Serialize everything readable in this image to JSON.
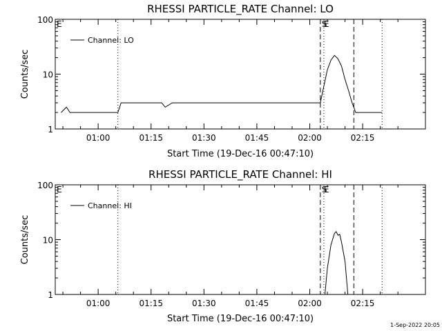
{
  "footer": {
    "timestamp": "1-Sep-2022 20:05"
  },
  "chart_data": [
    {
      "type": "line",
      "title": "RHESSI PARTICLE_RATE Channel: LO",
      "xlabel": "Start Time (19-Dec-16 00:47:10)",
      "ylabel": "Counts/sec",
      "yscale": "log",
      "ylim": [
        1,
        100
      ],
      "xlim_minutes": [
        -12.17,
        92.8
      ],
      "xticks": [
        {
          "t": 0,
          "label": "01:00"
        },
        {
          "t": 15,
          "label": "01:15"
        },
        {
          "t": 30,
          "label": "01:30"
        },
        {
          "t": 45,
          "label": "01:45"
        },
        {
          "t": 60,
          "label": "02:00"
        },
        {
          "t": 75,
          "label": "02:15"
        }
      ],
      "yticks": [
        {
          "v": 1,
          "label": "1"
        },
        {
          "v": 10,
          "label": "10"
        },
        {
          "v": 100,
          "label": "100"
        }
      ],
      "legend": {
        "position": "top-left",
        "entries": [
          "Channel: LO"
        ]
      },
      "markers": [
        {
          "t": 5.6,
          "style": "dotted"
        },
        {
          "t": 63.0,
          "style": "dashed"
        },
        {
          "t": 64.0,
          "style": "dotted"
        },
        {
          "t": 72.5,
          "style": "dashed"
        },
        {
          "t": 80.5,
          "style": "dotted"
        }
      ],
      "flags": [
        "S",
        "E"
      ],
      "series": [
        {
          "x": [
            -10.5,
            -9,
            -8,
            -5,
            -3,
            -1,
            0,
            4,
            5.6,
            6.5,
            8,
            10,
            15,
            18,
            19,
            21,
            24,
            30,
            35,
            40,
            45,
            50,
            55,
            60,
            62,
            63,
            64,
            65,
            66,
            67,
            68,
            69,
            70,
            71,
            72,
            72.5,
            73,
            75,
            78,
            80.5
          ],
          "y": [
            2,
            2.5,
            2,
            2,
            2,
            2,
            2,
            2,
            2,
            3,
            3,
            3,
            3,
            3,
            2.5,
            3,
            3,
            3,
            3,
            3,
            3,
            3,
            3,
            3,
            3,
            3,
            6,
            12,
            18,
            22,
            19,
            14,
            8,
            5,
            3,
            2.5,
            2,
            2,
            2,
            2
          ]
        }
      ]
    },
    {
      "type": "line",
      "title": "RHESSI PARTICLE_RATE Channel: HI",
      "xlabel": "Start Time (19-Dec-16 00:47:10)",
      "ylabel": "Counts/sec",
      "yscale": "log",
      "ylim": [
        1,
        100
      ],
      "xlim_minutes": [
        -12.17,
        92.8
      ],
      "xticks": [
        {
          "t": 0,
          "label": "01:00"
        },
        {
          "t": 15,
          "label": "01:15"
        },
        {
          "t": 30,
          "label": "01:30"
        },
        {
          "t": 45,
          "label": "01:45"
        },
        {
          "t": 60,
          "label": "02:00"
        },
        {
          "t": 75,
          "label": "02:15"
        }
      ],
      "yticks": [
        {
          "v": 1,
          "label": "1"
        },
        {
          "v": 10,
          "label": "10"
        },
        {
          "v": 100,
          "label": "100"
        }
      ],
      "legend": {
        "position": "top-left",
        "entries": [
          "Channel: HI"
        ]
      },
      "markers": [
        {
          "t": 5.6,
          "style": "dotted"
        },
        {
          "t": 63.0,
          "style": "dashed"
        },
        {
          "t": 64.0,
          "style": "dotted"
        },
        {
          "t": 72.5,
          "style": "dashed"
        },
        {
          "t": 80.5,
          "style": "dotted"
        }
      ],
      "flags": [
        "S",
        "E"
      ],
      "series": [
        {
          "x": [
            64.3,
            65,
            66,
            67,
            67.5,
            68,
            68.5,
            69,
            70,
            70.8
          ],
          "y": [
            1,
            3,
            8,
            13,
            14,
            12,
            12.5,
            9,
            4,
            1
          ]
        }
      ]
    }
  ]
}
